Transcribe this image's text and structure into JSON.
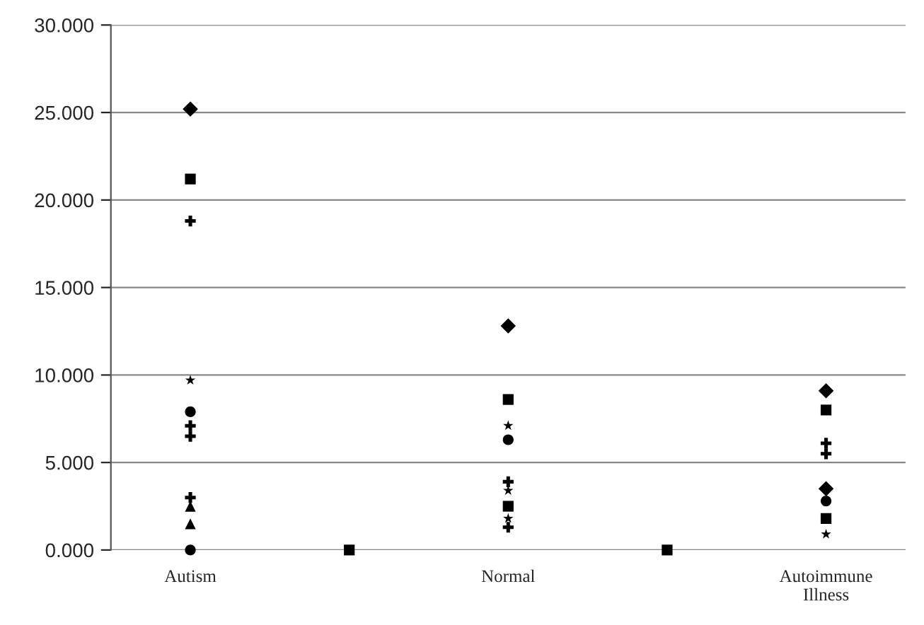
{
  "chart_data": {
    "type": "scatter",
    "categories": [
      "Autism",
      null,
      "Normal",
      null,
      "Autoimmune\nIllness"
    ],
    "ylim": [
      0,
      30
    ],
    "yticks": [
      {
        "value": 0,
        "label": "0.000"
      },
      {
        "value": 5,
        "label": "5.000"
      },
      {
        "value": 10,
        "label": "10.000"
      },
      {
        "value": 15,
        "label": "15.000"
      },
      {
        "value": 20,
        "label": "20.000"
      },
      {
        "value": 25,
        "label": "25.000"
      },
      {
        "value": 30,
        "label": "30.000"
      }
    ],
    "grid": "y",
    "legend": false,
    "series": [
      {
        "marker": "diamond",
        "color": "#000000",
        "values": [
          25.2,
          null,
          12.8,
          null,
          9.1
        ]
      },
      {
        "marker": "diamond",
        "color": "#000000",
        "values": [
          null,
          null,
          null,
          null,
          3.5
        ]
      },
      {
        "marker": "square",
        "color": "#000000",
        "values": [
          21.2,
          0,
          8.6,
          0,
          8.0
        ]
      },
      {
        "marker": "square",
        "color": "#000000",
        "values": [
          null,
          null,
          2.5,
          null,
          1.8
        ]
      },
      {
        "marker": "star",
        "color": "#000000",
        "values": [
          9.7,
          null,
          7.1,
          null,
          0.9
        ]
      },
      {
        "marker": "star",
        "color": "#000000",
        "values": [
          null,
          null,
          3.4,
          null,
          null
        ]
      },
      {
        "marker": "star",
        "color": "#000000",
        "values": [
          null,
          null,
          1.8,
          null,
          null
        ]
      },
      {
        "marker": "circle",
        "color": "#000000",
        "values": [
          7.9,
          null,
          6.3,
          null,
          2.8
        ]
      },
      {
        "marker": "circle",
        "color": "#000000",
        "values": [
          0,
          null,
          null,
          null,
          null
        ]
      },
      {
        "marker": "cross",
        "color": "#000000",
        "values": [
          18.8,
          null,
          3.9,
          null,
          6.1
        ]
      },
      {
        "marker": "cross",
        "color": "#000000",
        "values": [
          7.1,
          null,
          1.3,
          null,
          5.5
        ]
      },
      {
        "marker": "cross",
        "color": "#000000",
        "values": [
          6.5,
          null,
          null,
          null,
          null
        ]
      },
      {
        "marker": "cross",
        "color": "#000000",
        "values": [
          3.0,
          null,
          null,
          null,
          null
        ]
      },
      {
        "marker": "triangle",
        "color": "#000000",
        "values": [
          1.5,
          null,
          null,
          null,
          null
        ]
      },
      {
        "marker": "triangle",
        "color": "#000000",
        "values": [
          2.5,
          null,
          null,
          null,
          null
        ]
      }
    ]
  }
}
